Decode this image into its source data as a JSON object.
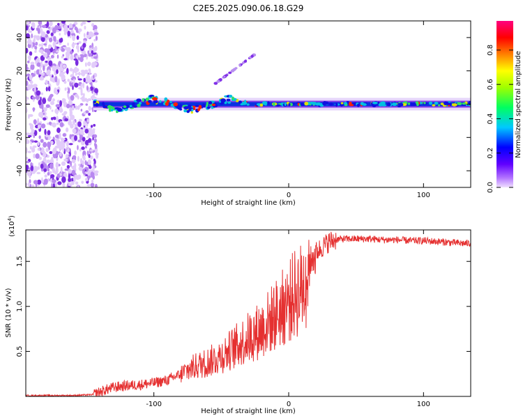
{
  "title": "C2E5.2025.090.06.18.G29",
  "chart_data": [
    {
      "type": "heatmap",
      "name": "spectrogram",
      "xlabel": "Height of straight line (km)",
      "ylabel": "Frequency (Hz)",
      "xlim": [
        -195,
        135
      ],
      "ylim": [
        -50,
        50
      ],
      "x_ticks": [
        -100,
        0,
        100
      ],
      "y_ticks": [
        -40,
        -20,
        0,
        20,
        40
      ],
      "colorbar": {
        "label": "Normalized spectral amplitude",
        "range": [
          0.0,
          0.97
        ],
        "ticks": [
          "0.0",
          "0.2",
          "0.4",
          "0.6",
          "0.8"
        ],
        "colors": [
          "#f0e0ff",
          "#8000ff",
          "#0000ff",
          "#00c8ff",
          "#00ff40",
          "#c8ff00",
          "#ffff00",
          "#ff8000",
          "#ff0000",
          "#ff0080"
        ]
      },
      "noise_region_x": [
        -195,
        -145
      ],
      "features": [
        {
          "name": "main carrier",
          "x_start": -145,
          "x_end": 135,
          "frequency_hz": 0
        },
        {
          "name": "secondary branch",
          "x_start": -55,
          "x_end": -25,
          "frequency_hz_start": 12,
          "frequency_hz_end": 30
        }
      ]
    },
    {
      "type": "line",
      "name": "snr",
      "xlabel": "Height of straight line (km)",
      "ylabel": "SNR (10 * v/v)",
      "y_multiplier": "(x10",
      "y_multiplier_exp": "4",
      "xlim": [
        -195,
        135
      ],
      "ylim": [
        0,
        1.85
      ],
      "x_ticks": [
        -100,
        0,
        100
      ],
      "y_ticks": [
        0.5,
        1.0,
        1.5
      ],
      "color": "#e53030",
      "series": [
        {
          "name": "SNR",
          "x": [
            -195,
            -180,
            -160,
            -145,
            -140,
            -130,
            -120,
            -110,
            -100,
            -90,
            -80,
            -70,
            -60,
            -50,
            -40,
            -30,
            -20,
            -10,
            0,
            5,
            10,
            15,
            20,
            25,
            30,
            35,
            40,
            50,
            60,
            70,
            80,
            90,
            100,
            110,
            120,
            130,
            135
          ],
          "y": [
            0.01,
            0.01,
            0.01,
            0.02,
            0.05,
            0.1,
            0.12,
            0.13,
            0.15,
            0.18,
            0.25,
            0.33,
            0.38,
            0.45,
            0.55,
            0.65,
            0.75,
            0.9,
            1.05,
            1.15,
            1.2,
            1.45,
            1.6,
            1.66,
            1.72,
            1.74,
            1.75,
            1.75,
            1.75,
            1.74,
            1.74,
            1.73,
            1.73,
            1.72,
            1.71,
            1.7,
            1.7
          ]
        }
      ]
    }
  ]
}
